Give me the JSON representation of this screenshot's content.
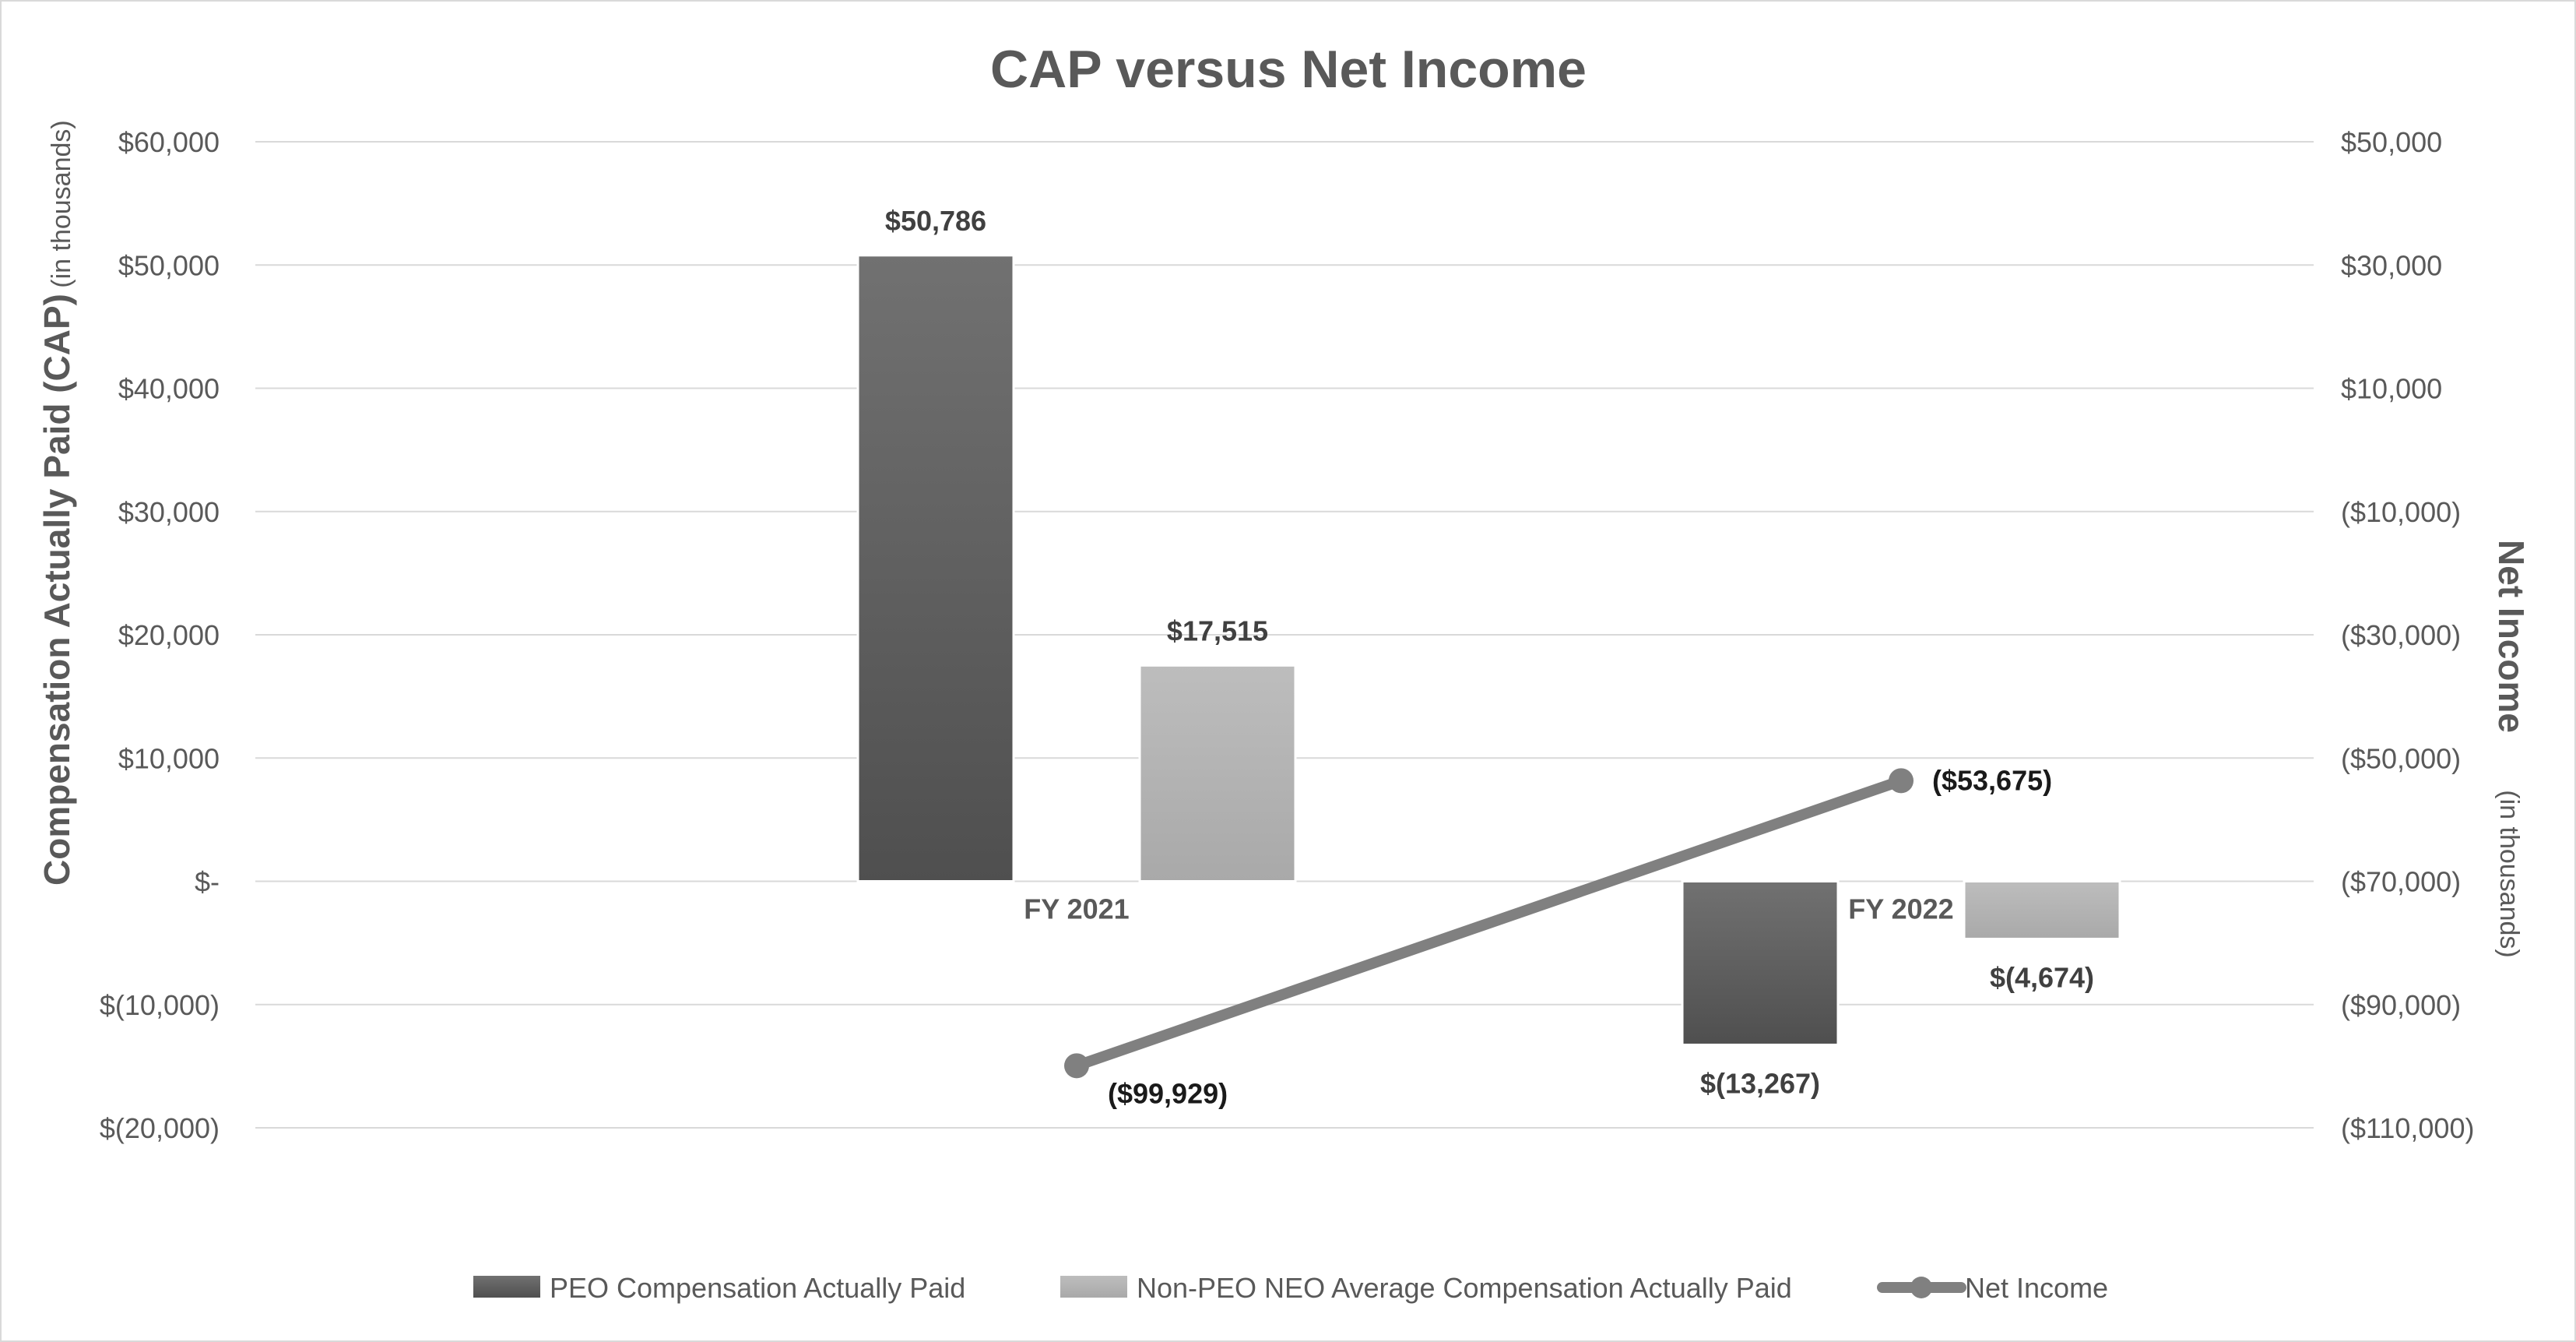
{
  "chart_data": {
    "type": "bar",
    "title": "CAP versus Net Income",
    "categories": [
      "FY 2021",
      "FY 2022"
    ],
    "y_left": {
      "title": "Compensation Actually Paid (CAP)",
      "note": "(in thousands)",
      "range": [
        -20000,
        60000
      ],
      "ticks": [
        60000,
        50000,
        40000,
        30000,
        20000,
        10000,
        0,
        -10000,
        -20000
      ],
      "tick_labels": [
        "$60,000",
        "$50,000",
        "$40,000",
        "$30,000",
        "$20,000",
        "$10,000",
        "$-",
        "$(10,000)",
        "$(20,000)"
      ]
    },
    "y_right": {
      "title": "Net Income",
      "note": "(in thousands)",
      "range": [
        -110000,
        50000
      ],
      "ticks": [
        50000,
        30000,
        10000,
        -10000,
        -30000,
        -50000,
        -70000,
        -90000,
        -110000
      ],
      "tick_labels": [
        "$50,000",
        "$30,000",
        "$10,000",
        "($10,000)",
        "($30,000)",
        "($50,000)",
        "($70,000)",
        "($90,000)",
        "($110,000)"
      ]
    },
    "grid": true,
    "legend_position": "bottom",
    "series": [
      {
        "name": "PEO Compensation Actually Paid",
        "type": "bar",
        "axis": "left",
        "color": "#595959",
        "values": [
          50786,
          -13267
        ],
        "labels": [
          "$50,786",
          "$(13,267)"
        ]
      },
      {
        "name": "Non-PEO NEO Average Compensation Actually Paid",
        "type": "bar",
        "axis": "left",
        "color": "#b3b3b3",
        "values": [
          17515,
          -4674
        ],
        "labels": [
          "$17,515",
          "$(4,674)"
        ]
      },
      {
        "name": "Net Income",
        "type": "line",
        "axis": "right",
        "color": "#808080",
        "values": [
          -99929,
          -53675
        ],
        "labels": [
          "($99,929)",
          "($53,675)"
        ]
      }
    ]
  }
}
